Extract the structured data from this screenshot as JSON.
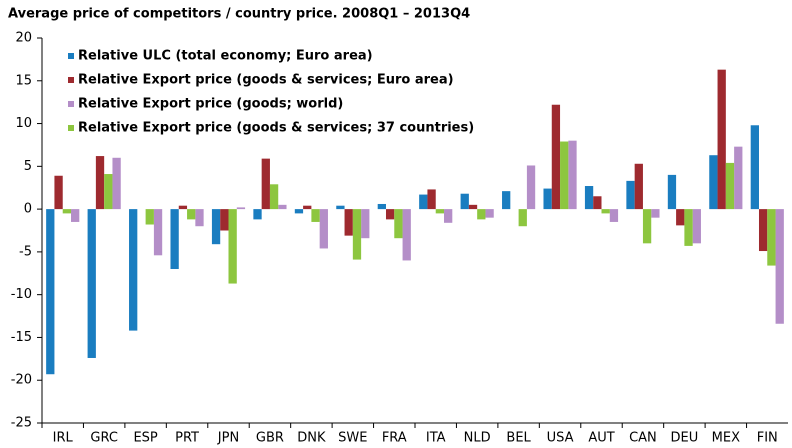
{
  "chart_data": {
    "type": "bar",
    "title": "Average price of competitors / country price. 2008Q1 – 2013Q4",
    "categories": [
      "IRL",
      "GRC",
      "ESP",
      "PRT",
      "JPN",
      "GBR",
      "DNK",
      "SWE",
      "FRA",
      "ITA",
      "NLD",
      "BEL",
      "USA",
      "AUT",
      "CAN",
      "DEU",
      "MEX",
      "FIN"
    ],
    "series": [
      {
        "name": "Relative ULC (total economy; Euro area)",
        "color": "#1a7dc0",
        "values": [
          -19.3,
          -17.4,
          -14.2,
          -7.0,
          -4.1,
          -1.2,
          -0.5,
          0.4,
          0.6,
          1.7,
          1.8,
          2.1,
          2.4,
          2.7,
          3.3,
          4.0,
          6.3,
          9.8
        ]
      },
      {
        "name": "Relative Export price (goods & services; Euro area)",
        "color": "#9e2a2f",
        "values": [
          3.9,
          6.2,
          0,
          0.4,
          -2.5,
          5.9,
          0.4,
          -3.1,
          -1.2,
          2.3,
          0.5,
          0,
          12.2,
          1.5,
          5.3,
          -1.9,
          16.3,
          -4.9
        ]
      },
      {
        "name": "Relative Export price (goods; world)",
        "color": "#b48ec8",
        "values": [
          -1.5,
          6.0,
          -5.4,
          -2.0,
          0.2,
          0.5,
          -4.6,
          -3.4,
          -6.0,
          -1.6,
          -1.0,
          5.1,
          8.0,
          -1.5,
          -1.0,
          -4.0,
          7.3,
          -13.4
        ]
      },
      {
        "name": "Relative Export price (goods & services; 37 countries)",
        "color": "#8dc63f",
        "values": [
          -0.5,
          4.1,
          -1.8,
          -1.2,
          -8.7,
          2.9,
          -1.5,
          -5.9,
          -3.4,
          -0.5,
          -1.2,
          -2.0,
          7.9,
          -0.5,
          -4.0,
          -4.3,
          5.4,
          -6.6
        ]
      }
    ],
    "ylim": [
      -25,
      20
    ],
    "yticks": [
      -25,
      -20,
      -15,
      -10,
      -5,
      0,
      5,
      10,
      15,
      20
    ],
    "legend": "upper left",
    "grid": false
  }
}
